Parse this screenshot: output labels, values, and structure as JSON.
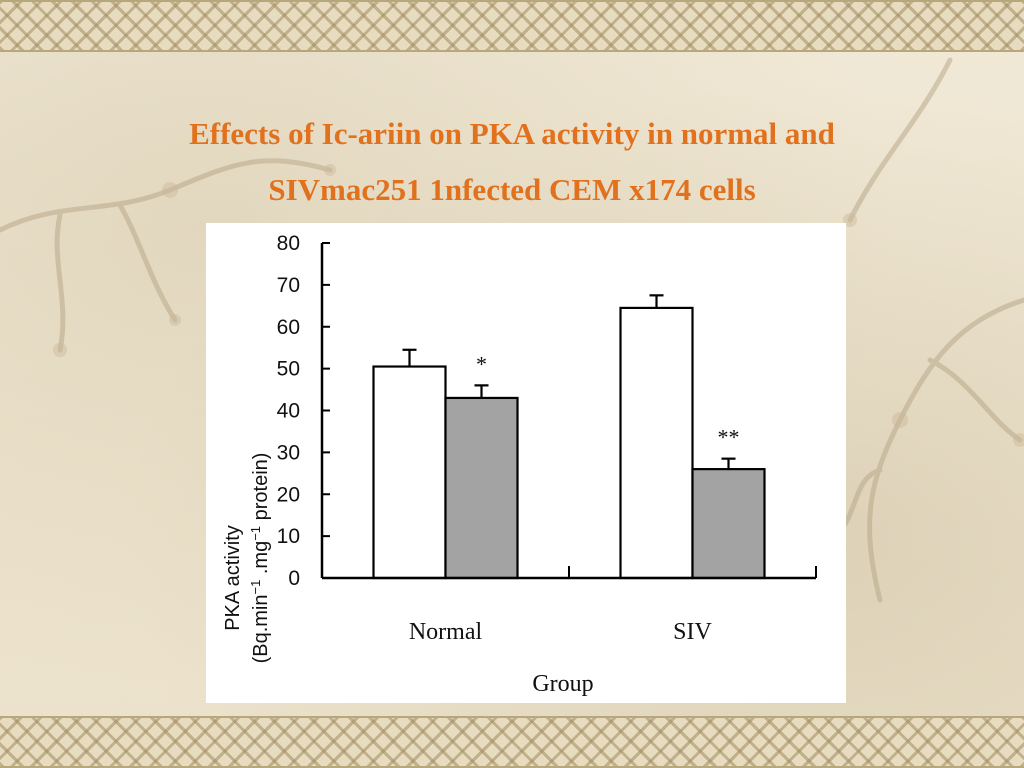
{
  "slide": {
    "title_line1": "Effects of Ic-ariin on PKA activity in normal and",
    "title_line2": "SIVmac251 1nfected CEM x174 cells"
  },
  "colors": {
    "title": "#e2711d",
    "bar_control": "#ffffff",
    "bar_treated": "#a3a3a3",
    "axis": "#000000"
  },
  "chart_data": {
    "type": "bar",
    "title": "",
    "categories": [
      "Normal",
      "SIV"
    ],
    "xlabel": "Group",
    "ylabel_line1": "PKA activity",
    "ylabel_line2_parts": [
      "(Bq.min",
      "−1",
      " .mg",
      "−1",
      " protein)"
    ],
    "ylim": [
      0,
      80
    ],
    "yticks": [
      0,
      10,
      20,
      30,
      40,
      50,
      60,
      70,
      80
    ],
    "series": [
      {
        "values": [
          50.5,
          64.5
        ],
        "errors": [
          4.0,
          3.0
        ],
        "color": "#ffffff"
      },
      {
        "values": [
          43.0,
          26.0
        ],
        "errors": [
          3.0,
          2.5
        ],
        "color": "#a3a3a3"
      }
    ],
    "annotations": [
      {
        "category": "Normal",
        "series": 1,
        "text": "*"
      },
      {
        "category": "SIV",
        "series": 1,
        "text": "**"
      }
    ],
    "grid": false,
    "legend": "none"
  }
}
